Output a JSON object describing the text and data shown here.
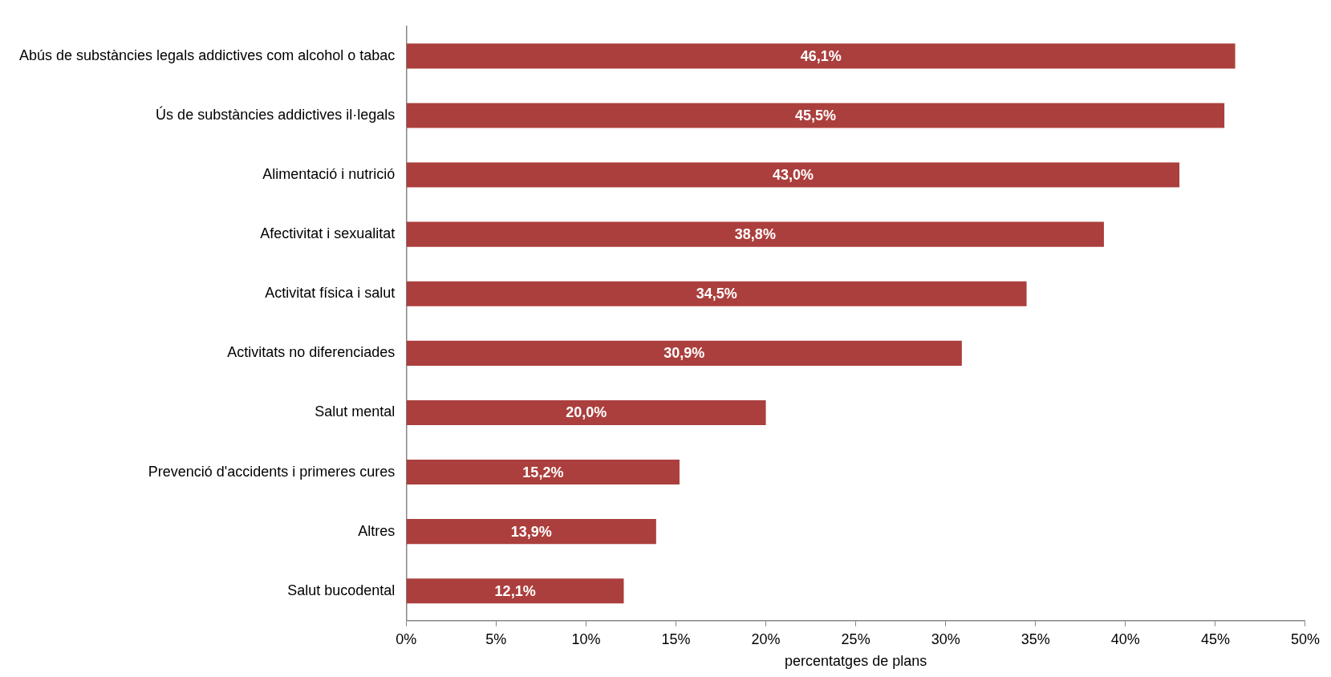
{
  "chart_data": {
    "type": "bar",
    "orientation": "horizontal",
    "categories": [
      "Abús de substàncies legals addictives com alcohol o tabac",
      "Ús de substàncies addictives il·legals",
      "Alimentació i nutrició",
      "Afectivitat i sexualitat",
      "Activitat física i salut",
      "Activitats no diferenciades",
      "Salut mental",
      "Prevenció d'accidents i primeres cures",
      "Altres",
      "Salut bucodental"
    ],
    "values": [
      46.1,
      45.5,
      43.0,
      38.8,
      34.5,
      30.9,
      20.0,
      15.2,
      13.9,
      12.1
    ],
    "value_labels": [
      "46,1%",
      "45,5%",
      "43,0%",
      "38,8%",
      "34,5%",
      "30,9%",
      "20,0%",
      "15,2%",
      "13,9%",
      "12,1%"
    ],
    "color": "#ab3f3d",
    "xlim": [
      0,
      50
    ],
    "xticks": [
      {
        "value": 0,
        "label": "0%"
      },
      {
        "value": 5,
        "label": "5%"
      },
      {
        "value": 10,
        "label": "10%"
      },
      {
        "value": 15,
        "label": "15%"
      },
      {
        "value": 20,
        "label": "20%"
      },
      {
        "value": 25,
        "label": "25%"
      },
      {
        "value": 30,
        "label": "30%"
      },
      {
        "value": 35,
        "label": "35%"
      },
      {
        "value": 40,
        "label": "40%"
      },
      {
        "value": 45,
        "label": "45%"
      },
      {
        "value": 50,
        "label": "50%"
      }
    ],
    "xlabel": "percentatges de plans"
  }
}
